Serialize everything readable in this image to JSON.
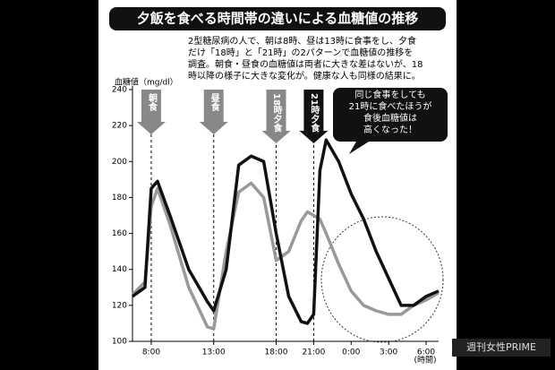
{
  "chart_data": {
    "type": "line",
    "title": "夕飯を食べる時間帯の違いによる血糖値の推移",
    "description": [
      "2型糖尿病の人で、朝は8時、昼は13時に食事をし、夕食",
      "だけ「18時」と「21時」の2パターンで血糖値の推移を",
      "調査。朝食・昼食の血糖値は両者に大きな差はないが、18",
      "時以降の様子に大きな変化が。健康な人も同様の結果に。"
    ],
    "y_label": "血糖値（mg/dl）",
    "x_label": "(時間)",
    "x": [
      6.5,
      7.5,
      8,
      8.5,
      9.5,
      11,
      12.5,
      13,
      14,
      15,
      16,
      17,
      18,
      19,
      20,
      20.5,
      21,
      21.5,
      22,
      23,
      24,
      25,
      26,
      27,
      28,
      29,
      30,
      31
    ],
    "xlim": [
      6.5,
      31
    ],
    "xticks": [
      {
        "value": 8,
        "label": "8:00"
      },
      {
        "value": 13,
        "label": "13:00"
      },
      {
        "value": 18,
        "label": "18:00"
      },
      {
        "value": 21,
        "label": "21:00"
      },
      {
        "value": 24,
        "label": "0:00"
      },
      {
        "value": 27,
        "label": "3:00"
      },
      {
        "value": 30,
        "label": "6:00"
      }
    ],
    "ylim": [
      100,
      240
    ],
    "yticks": [
      100,
      120,
      140,
      160,
      180,
      200,
      220,
      240
    ],
    "series": [
      {
        "name": "18時夕食",
        "color": "#999999",
        "values": [
          126,
          133,
          175,
          185,
          165,
          130,
          108,
          107,
          150,
          183,
          188,
          180,
          145,
          150,
          167,
          172,
          170,
          168,
          160,
          143,
          128,
          120,
          117,
          115,
          115,
          120,
          123,
          127
        ]
      },
      {
        "name": "21時夕食",
        "color": "#111111",
        "values": [
          125,
          130,
          185,
          189,
          170,
          140,
          122,
          117,
          140,
          198,
          203,
          200,
          160,
          125,
          111,
          110,
          115,
          195,
          212,
          200,
          182,
          168,
          150,
          135,
          120,
          120,
          125,
          128
        ]
      }
    ],
    "meals": [
      {
        "x": 8,
        "label": "朝食"
      },
      {
        "x": 13,
        "label": "昼食"
      },
      {
        "x": 18,
        "label": "18時夕食"
      },
      {
        "x": 21,
        "label": "21時夕食"
      }
    ],
    "callout": [
      "同じ食事をしても",
      "21時に食べたほうが",
      "食後血糖値は",
      "高くなった！"
    ],
    "watermark": "週刊女性PRIME"
  }
}
